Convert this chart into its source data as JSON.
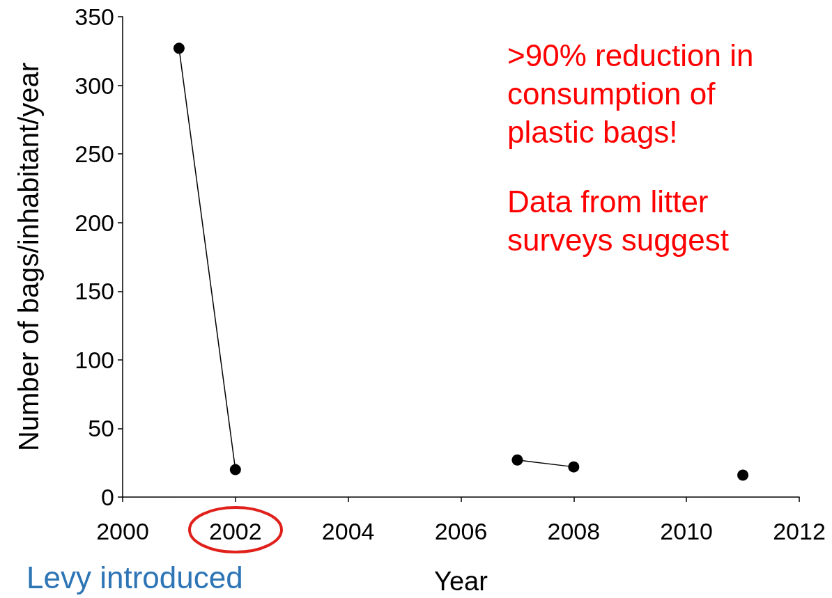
{
  "chart_data": {
    "type": "line",
    "xlabel": "Year",
    "ylabel": "Number of bags/inhabitant/year",
    "x": [
      2001,
      2002,
      2005,
      2007,
      2008,
      2010,
      2011
    ],
    "values": [
      327,
      20,
      null,
      27,
      22,
      null,
      16
    ],
    "color": "#000000",
    "marker": "circle",
    "line_style": "solid",
    "grid": false,
    "xlim": [
      2000,
      2012
    ],
    "xticks": [
      2000,
      2002,
      2004,
      2006,
      2008,
      2010,
      2012
    ],
    "ylim": [
      0,
      350
    ],
    "yticks": [
      0,
      50,
      100,
      150,
      200,
      250,
      300,
      350
    ],
    "annotations": [
      ">90% reduction in consumption of plastic bags!",
      "Data from litter surveys suggest",
      "Levy introduced"
    ]
  }
}
